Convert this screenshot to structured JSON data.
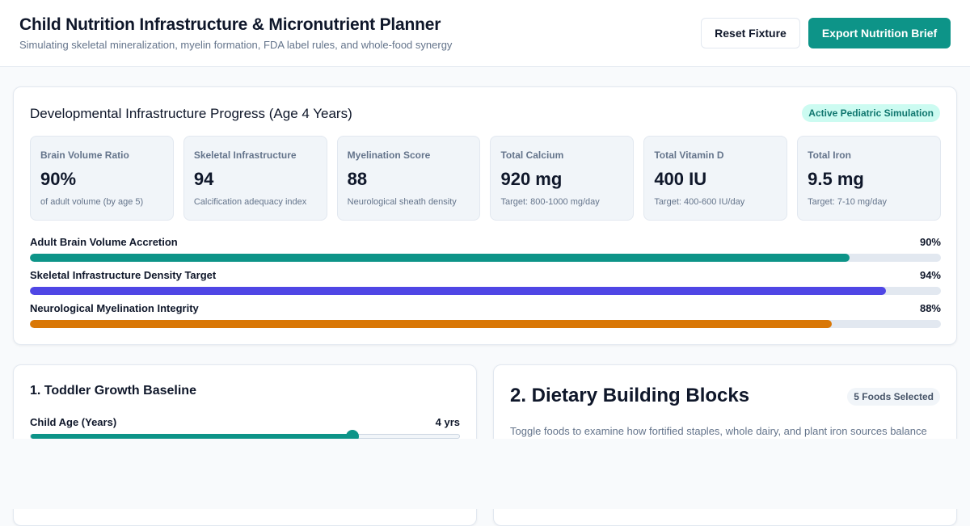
{
  "header": {
    "title": "Child Nutrition Infrastructure & Micronutrient Planner",
    "subtitle": "Simulating skeletal mineralization, myelin formation, FDA label rules, and whole-food synergy",
    "reset_label": "Reset Fixture",
    "export_label": "Export Nutrition Brief"
  },
  "progress": {
    "title": "Developmental Infrastructure Progress (Age 4 Years)",
    "badge": "Active Pediatric Simulation",
    "metrics": [
      {
        "label": "Brain Volume Ratio",
        "value": "90%",
        "note": "of adult volume (by age 5)"
      },
      {
        "label": "Skeletal Infrastructure",
        "value": "94",
        "note": "Calcification adequacy index"
      },
      {
        "label": "Myelination Score",
        "value": "88",
        "note": "Neurological sheath density"
      },
      {
        "label": "Total Calcium",
        "value": "920 mg",
        "note": "Target: 800-1000 mg/day"
      },
      {
        "label": "Total Vitamin D",
        "value": "400 IU",
        "note": "Target: 400-600 IU/day"
      },
      {
        "label": "Total Iron",
        "value": "9.5 mg",
        "note": "Target: 7-10 mg/day"
      }
    ],
    "bars": [
      {
        "label": "Adult Brain Volume Accretion",
        "pct_label": "90%",
        "value": 90,
        "color": "#0d9488"
      },
      {
        "label": "Skeletal Infrastructure Density Target",
        "pct_label": "94%",
        "value": 94,
        "color": "#4f46e5"
      },
      {
        "label": "Neurological Myelination Integrity",
        "pct_label": "88%",
        "value": 88,
        "color": "#d97706"
      }
    ]
  },
  "baseline": {
    "title": "1. Toddler Growth Baseline",
    "age_label": "Child Age (Years)",
    "age_value": "4 yrs",
    "age_fraction": 0.75
  },
  "foods": {
    "title": "2. Dietary Building Blocks",
    "badge": "5 Foods Selected",
    "description": "Toggle foods to examine how fortified staples, whole dairy, and plant iron sources balance"
  }
}
